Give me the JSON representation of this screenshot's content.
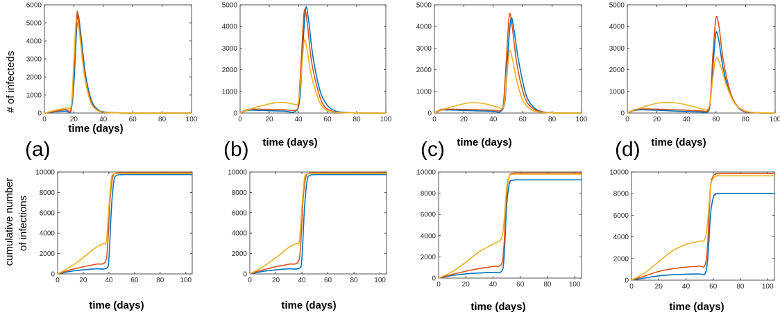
{
  "colors": {
    "blue": "#0072BD",
    "red": "#D95319",
    "orange": "#EDB120"
  },
  "row_ylabels": {
    "top": "# of infecteds",
    "bottom_line1": "cumulative number",
    "bottom_line2": "of infections"
  },
  "panel_labels": [
    "(a)",
    "(b)",
    "(c)",
    "(d)"
  ],
  "chart_data": [
    {
      "type": "line",
      "xlabel": "time (days)",
      "xlim": [
        0,
        100
      ],
      "ylim": [
        0,
        6000
      ],
      "xticks": [
        0,
        20,
        40,
        60,
        80,
        100
      ],
      "yticks": [
        0,
        1000,
        2000,
        3000,
        4000,
        5000,
        6000
      ],
      "series": [
        {
          "color": "blue",
          "x": [
            0,
            10,
            15,
            18,
            20,
            22,
            23,
            25,
            28,
            32,
            36,
            40,
            50,
            60,
            100
          ],
          "y": [
            0,
            90,
            110,
            120,
            1600,
            4800,
            5450,
            4200,
            2100,
            700,
            220,
            70,
            10,
            2,
            0
          ]
        },
        {
          "color": "red",
          "x": [
            0,
            10,
            15,
            18,
            20,
            22,
            23,
            25,
            28,
            32,
            36,
            40,
            50,
            60,
            100
          ],
          "y": [
            0,
            140,
            200,
            220,
            2300,
            5350,
            5350,
            3800,
            1800,
            580,
            170,
            50,
            8,
            2,
            0
          ]
        },
        {
          "color": "orange",
          "x": [
            0,
            10,
            15,
            18,
            19,
            21,
            22,
            24,
            27,
            31,
            35,
            40,
            50,
            60,
            100
          ],
          "y": [
            0,
            200,
            280,
            330,
            1200,
            4500,
            5200,
            4300,
            2200,
            700,
            200,
            50,
            8,
            2,
            0
          ]
        }
      ]
    },
    {
      "type": "line",
      "xlabel": "time (days)",
      "xlim": [
        0,
        100
      ],
      "ylim": [
        0,
        5000
      ],
      "xticks": [
        0,
        20,
        40,
        60,
        80,
        100
      ],
      "yticks": [
        0,
        1000,
        2000,
        3000,
        4000,
        5000
      ],
      "series": [
        {
          "color": "blue",
          "x": [
            0,
            5,
            10,
            20,
            30,
            38,
            41,
            43,
            45,
            47,
            50,
            55,
            60,
            65,
            70,
            80,
            100
          ],
          "y": [
            0,
            120,
            130,
            110,
            90,
            80,
            700,
            3000,
            4850,
            4300,
            2600,
            1000,
            350,
            110,
            40,
            5,
            0
          ]
        },
        {
          "color": "red",
          "x": [
            0,
            5,
            10,
            20,
            30,
            38,
            40,
            42,
            44,
            46,
            49,
            54,
            58,
            63,
            70,
            80,
            100
          ],
          "y": [
            0,
            160,
            180,
            170,
            150,
            130,
            400,
            2500,
            4700,
            4200,
            2400,
            900,
            300,
            90,
            25,
            5,
            0
          ]
        },
        {
          "color": "orange",
          "x": [
            0,
            10,
            20,
            27,
            33,
            38,
            40,
            42,
            44,
            46,
            49,
            54,
            58,
            63,
            70,
            80,
            100
          ],
          "y": [
            0,
            250,
            420,
            490,
            460,
            400,
            500,
            1800,
            3350,
            2900,
            1700,
            600,
            200,
            60,
            15,
            3,
            0
          ]
        }
      ]
    },
    {
      "type": "line",
      "xlabel": "time (days)",
      "xlim": [
        0,
        100
      ],
      "ylim": [
        0,
        5000
      ],
      "xticks": [
        0,
        20,
        40,
        60,
        80,
        100
      ],
      "yticks": [
        0,
        1000,
        2000,
        3000,
        4000,
        5000
      ],
      "series": [
        {
          "color": "blue",
          "x": [
            0,
            5,
            10,
            20,
            30,
            40,
            45,
            48,
            50,
            52,
            54,
            57,
            62,
            67,
            72,
            80,
            100
          ],
          "y": [
            0,
            130,
            140,
            120,
            100,
            80,
            75,
            600,
            2800,
            4350,
            3900,
            2500,
            900,
            300,
            90,
            10,
            0
          ]
        },
        {
          "color": "red",
          "x": [
            0,
            5,
            10,
            20,
            30,
            40,
            45,
            47,
            49,
            51,
            53,
            56,
            61,
            66,
            72,
            80,
            100
          ],
          "y": [
            0,
            170,
            180,
            170,
            150,
            130,
            120,
            500,
            2600,
            4550,
            3900,
            2300,
            800,
            260,
            70,
            10,
            0
          ]
        },
        {
          "color": "orange",
          "x": [
            0,
            10,
            20,
            27,
            35,
            43,
            47,
            49,
            51,
            53,
            56,
            60,
            65,
            70,
            80,
            100
          ],
          "y": [
            0,
            250,
            430,
            480,
            420,
            280,
            300,
            1500,
            2850,
            2500,
            1500,
            600,
            200,
            60,
            5,
            0
          ]
        }
      ]
    },
    {
      "type": "line",
      "xlabel": "time (days)",
      "xlim": [
        0,
        100
      ],
      "ylim": [
        0,
        5000
      ],
      "xticks": [
        0,
        20,
        40,
        60,
        80,
        100
      ],
      "yticks": [
        0,
        1000,
        2000,
        3000,
        4000,
        5000
      ],
      "series": [
        {
          "color": "blue",
          "x": [
            0,
            5,
            10,
            20,
            30,
            40,
            50,
            54,
            56,
            58,
            60,
            62,
            65,
            70,
            75,
            80,
            90,
            100
          ],
          "y": [
            0,
            120,
            150,
            130,
            100,
            70,
            50,
            40,
            400,
            2200,
            3700,
            3300,
            2000,
            800,
            250,
            60,
            5,
            0
          ]
        },
        {
          "color": "red",
          "x": [
            0,
            5,
            10,
            20,
            30,
            40,
            50,
            54,
            56,
            58,
            60,
            62,
            65,
            70,
            75,
            80,
            90,
            100
          ],
          "y": [
            0,
            160,
            190,
            180,
            160,
            130,
            100,
            90,
            500,
            2800,
            4400,
            4000,
            2400,
            900,
            280,
            70,
            5,
            0
          ]
        },
        {
          "color": "orange",
          "x": [
            0,
            10,
            20,
            28,
            35,
            42,
            50,
            54,
            56,
            58,
            60,
            63,
            67,
            72,
            78,
            85,
            100
          ],
          "y": [
            0,
            260,
            450,
            490,
            450,
            350,
            200,
            150,
            500,
            1700,
            2550,
            2200,
            1300,
            500,
            150,
            30,
            0
          ]
        }
      ]
    },
    {
      "type": "line",
      "xlabel": "time (days)",
      "xlim": [
        0,
        105
      ],
      "ylim": [
        0,
        10000
      ],
      "xticks": [
        0,
        20,
        40,
        60,
        80,
        100
      ],
      "yticks": [
        0,
        2000,
        4000,
        6000,
        8000,
        10000
      ],
      "series": [
        {
          "color": "blue",
          "x": [
            0,
            10,
            20,
            30,
            38,
            40,
            42,
            44,
            46,
            48,
            52,
            60,
            105
          ],
          "y": [
            0,
            250,
            400,
            500,
            560,
            1500,
            6500,
            9200,
            9650,
            9730,
            9750,
            9750,
            9750
          ]
        },
        {
          "color": "red",
          "x": [
            0,
            10,
            20,
            30,
            37,
            39,
            41,
            43,
            45,
            47,
            50,
            60,
            105
          ],
          "y": [
            0,
            400,
            700,
            950,
            1150,
            2800,
            7500,
            9500,
            9850,
            9900,
            9920,
            9920,
            9920
          ]
        },
        {
          "color": "orange",
          "x": [
            0,
            10,
            20,
            30,
            36,
            38,
            40,
            42,
            44,
            46,
            50,
            60,
            105
          ],
          "y": [
            0,
            700,
            1600,
            2600,
            3000,
            3200,
            6500,
            9400,
            9800,
            9850,
            9860,
            9860,
            9860
          ]
        }
      ]
    },
    {
      "type": "line",
      "xlabel": "time (days)",
      "xlim": [
        0,
        105
      ],
      "ylim": [
        0,
        10000
      ],
      "xticks": [
        0,
        20,
        40,
        60,
        80,
        100
      ],
      "yticks": [
        0,
        2000,
        4000,
        6000,
        8000,
        10000
      ],
      "series": [
        {
          "color": "blue",
          "x": [
            0,
            10,
            20,
            30,
            38,
            40,
            42,
            44,
            46,
            48,
            52,
            60,
            105
          ],
          "y": [
            0,
            250,
            400,
            500,
            560,
            1500,
            6500,
            9200,
            9650,
            9730,
            9750,
            9750,
            9750
          ]
        },
        {
          "color": "red",
          "x": [
            0,
            10,
            20,
            30,
            37,
            39,
            41,
            43,
            45,
            47,
            50,
            60,
            105
          ],
          "y": [
            0,
            400,
            700,
            950,
            1150,
            2800,
            7500,
            9500,
            9850,
            9900,
            9920,
            9920,
            9920
          ]
        },
        {
          "color": "orange",
          "x": [
            0,
            10,
            20,
            30,
            36,
            38,
            40,
            42,
            44,
            46,
            50,
            60,
            105
          ],
          "y": [
            0,
            700,
            1600,
            2600,
            3000,
            3200,
            6500,
            9400,
            9800,
            9850,
            9860,
            9860,
            9860
          ]
        }
      ]
    },
    {
      "type": "line",
      "xlabel": "time (days)",
      "xlim": [
        0,
        105
      ],
      "ylim": [
        0,
        10000
      ],
      "xticks": [
        0,
        20,
        40,
        60,
        80,
        100
      ],
      "yticks": [
        0,
        2000,
        4000,
        6000,
        8000,
        10000
      ],
      "series": [
        {
          "color": "blue",
          "x": [
            0,
            10,
            20,
            30,
            40,
            46,
            48,
            50,
            52,
            54,
            57,
            62,
            105
          ],
          "y": [
            0,
            250,
            400,
            480,
            540,
            600,
            1800,
            6800,
            8900,
            9200,
            9250,
            9260,
            9260
          ]
        },
        {
          "color": "red",
          "x": [
            0,
            10,
            20,
            30,
            40,
            46,
            48,
            50,
            52,
            54,
            57,
            62,
            105
          ],
          "y": [
            0,
            350,
            650,
            900,
            1100,
            1300,
            3000,
            8000,
            9600,
            9850,
            9900,
            9900,
            9900
          ]
        },
        {
          "color": "orange",
          "x": [
            0,
            10,
            20,
            30,
            40,
            46,
            48,
            50,
            52,
            54,
            57,
            62,
            105
          ],
          "y": [
            0,
            600,
            1500,
            2500,
            3200,
            3700,
            5200,
            8500,
            9600,
            9780,
            9800,
            9800,
            9800
          ]
        }
      ]
    },
    {
      "type": "line",
      "xlabel": "time (days)",
      "xlim": [
        0,
        105
      ],
      "ylim": [
        0,
        10000
      ],
      "xticks": [
        0,
        20,
        40,
        60,
        80,
        100
      ],
      "yticks": [
        0,
        2000,
        4000,
        6000,
        8000,
        10000
      ],
      "series": [
        {
          "color": "blue",
          "x": [
            0,
            10,
            20,
            30,
            40,
            50,
            54,
            56,
            58,
            60,
            62,
            66,
            105
          ],
          "y": [
            0,
            200,
            400,
            500,
            550,
            580,
            600,
            2000,
            6000,
            7600,
            7950,
            8000,
            8000
          ]
        },
        {
          "color": "red",
          "x": [
            0,
            10,
            20,
            30,
            40,
            50,
            54,
            56,
            58,
            60,
            62,
            66,
            105
          ],
          "y": [
            0,
            400,
            800,
            1050,
            1200,
            1300,
            1400,
            3500,
            8500,
            9600,
            9800,
            9850,
            9850
          ]
        },
        {
          "color": "orange",
          "x": [
            0,
            10,
            20,
            30,
            40,
            50,
            54,
            56,
            58,
            60,
            62,
            66,
            105
          ],
          "y": [
            0,
            700,
            1700,
            2700,
            3300,
            3600,
            3800,
            5500,
            8600,
            9400,
            9600,
            9650,
            9650
          ]
        }
      ]
    }
  ]
}
